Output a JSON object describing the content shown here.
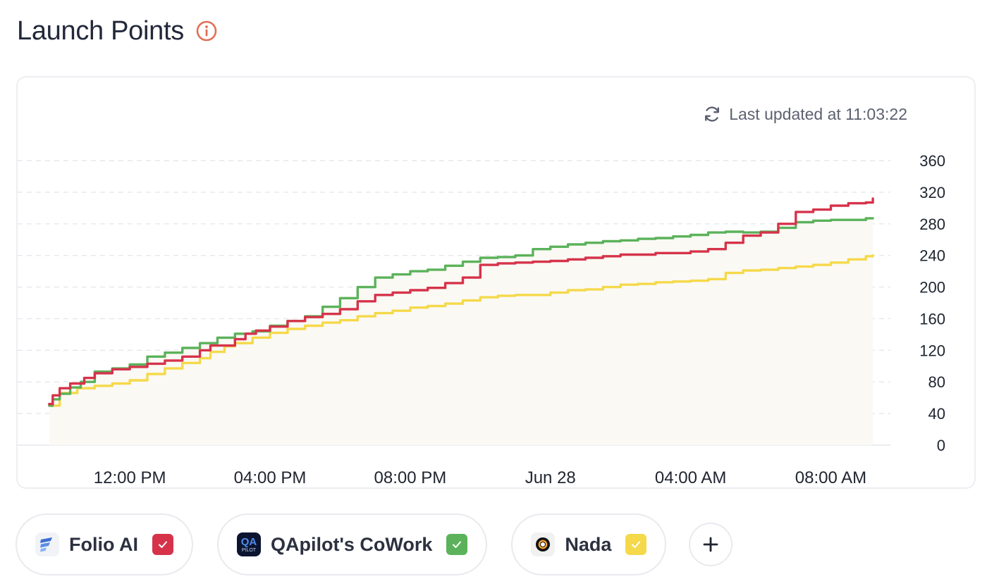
{
  "header": {
    "title": "Launch Points",
    "info_icon": "info-icon",
    "info_color": "#e26f55"
  },
  "status": {
    "text": "Last updated at 11:03:22",
    "icon": "refresh-icon"
  },
  "chart_data": {
    "type": "line",
    "title": "",
    "xlabel": "",
    "ylabel": "",
    "x_unit": "hours since chart start (time axis)",
    "x_ticks": [
      {
        "x": 3,
        "label": "12:00 PM"
      },
      {
        "x": 7,
        "label": "04:00 PM"
      },
      {
        "x": 11,
        "label": "08:00 PM"
      },
      {
        "x": 15,
        "label": "Jun 28"
      },
      {
        "x": 19,
        "label": "04:00 AM"
      },
      {
        "x": 23,
        "label": "08:00 AM"
      }
    ],
    "ylim": [
      0,
      360
    ],
    "y_ticks": [
      0,
      40,
      80,
      120,
      160,
      200,
      240,
      280,
      320,
      360
    ],
    "y_axis_position": "right",
    "grid": "horizontal-dashed",
    "legend": "bottom-chips",
    "series": [
      {
        "name": "Folio AI",
        "color": "#d6334a",
        "points": [
          [
            0.7,
            52
          ],
          [
            0.8,
            63
          ],
          [
            1.0,
            72
          ],
          [
            1.3,
            78
          ],
          [
            1.7,
            85
          ],
          [
            2.0,
            91
          ],
          [
            2.5,
            96
          ],
          [
            3.0,
            99
          ],
          [
            3.5,
            103
          ],
          [
            4.0,
            107
          ],
          [
            4.5,
            112
          ],
          [
            5.0,
            120
          ],
          [
            5.3,
            126
          ],
          [
            6.0,
            134
          ],
          [
            6.3,
            141
          ],
          [
            6.6,
            145
          ],
          [
            7.0,
            150
          ],
          [
            7.5,
            157
          ],
          [
            8.0,
            162
          ],
          [
            8.5,
            166
          ],
          [
            9.0,
            172
          ],
          [
            9.5,
            182
          ],
          [
            10.0,
            190
          ],
          [
            10.5,
            193
          ],
          [
            11.0,
            196
          ],
          [
            11.5,
            199
          ],
          [
            12.0,
            205
          ],
          [
            12.5,
            212
          ],
          [
            13.0,
            228
          ],
          [
            13.5,
            230
          ],
          [
            14.0,
            231
          ],
          [
            14.5,
            232
          ],
          [
            15.0,
            233
          ],
          [
            15.5,
            235
          ],
          [
            16.0,
            237
          ],
          [
            16.5,
            239
          ],
          [
            17.0,
            241
          ],
          [
            18.0,
            243
          ],
          [
            19.0,
            245
          ],
          [
            19.5,
            248
          ],
          [
            20.0,
            256
          ],
          [
            20.5,
            265
          ],
          [
            21.0,
            269
          ],
          [
            21.5,
            280
          ],
          [
            22.0,
            295
          ],
          [
            22.5,
            298
          ],
          [
            23.0,
            303
          ],
          [
            23.5,
            306
          ],
          [
            24.0,
            307
          ],
          [
            24.2,
            312
          ]
        ]
      },
      {
        "name": "QApilot's CoWork",
        "color": "#5bb25a",
        "points": [
          [
            0.7,
            50
          ],
          [
            0.8,
            58
          ],
          [
            1.0,
            65
          ],
          [
            1.3,
            73
          ],
          [
            1.6,
            80
          ],
          [
            2.0,
            93
          ],
          [
            2.5,
            97
          ],
          [
            3.0,
            102
          ],
          [
            3.5,
            112
          ],
          [
            4.0,
            117
          ],
          [
            4.5,
            123
          ],
          [
            5.0,
            129
          ],
          [
            5.5,
            136
          ],
          [
            6.0,
            141
          ],
          [
            6.5,
            144
          ],
          [
            7.0,
            151
          ],
          [
            7.5,
            157
          ],
          [
            8.0,
            163
          ],
          [
            8.5,
            175
          ],
          [
            9.0,
            186
          ],
          [
            9.5,
            200
          ],
          [
            10.0,
            212
          ],
          [
            10.5,
            216
          ],
          [
            11.0,
            220
          ],
          [
            11.5,
            222
          ],
          [
            12.0,
            227
          ],
          [
            12.5,
            232
          ],
          [
            13.0,
            237
          ],
          [
            13.5,
            238
          ],
          [
            14.0,
            240
          ],
          [
            14.5,
            248
          ],
          [
            15.0,
            251
          ],
          [
            15.5,
            254
          ],
          [
            16.0,
            256
          ],
          [
            16.5,
            258
          ],
          [
            17.0,
            259
          ],
          [
            17.5,
            261
          ],
          [
            18.0,
            262
          ],
          [
            18.5,
            264
          ],
          [
            19.0,
            266
          ],
          [
            19.5,
            269
          ],
          [
            20.0,
            270
          ],
          [
            20.5,
            269
          ],
          [
            21.0,
            270
          ],
          [
            21.5,
            275
          ],
          [
            22.0,
            282
          ],
          [
            22.5,
            284
          ],
          [
            23.0,
            285
          ],
          [
            23.5,
            285
          ],
          [
            24.0,
            287
          ],
          [
            24.2,
            287
          ]
        ]
      },
      {
        "name": "Nada",
        "color": "#f5d94a",
        "points": [
          [
            0.7,
            50
          ],
          [
            1.0,
            66
          ],
          [
            1.5,
            72
          ],
          [
            2.0,
            75
          ],
          [
            2.5,
            78
          ],
          [
            3.0,
            82
          ],
          [
            3.5,
            90
          ],
          [
            4.0,
            97
          ],
          [
            4.5,
            104
          ],
          [
            5.0,
            110
          ],
          [
            5.3,
            118
          ],
          [
            5.7,
            125
          ],
          [
            6.0,
            129
          ],
          [
            6.5,
            136
          ],
          [
            7.0,
            142
          ],
          [
            7.5,
            147
          ],
          [
            8.0,
            151
          ],
          [
            8.5,
            155
          ],
          [
            9.0,
            158
          ],
          [
            9.5,
            163
          ],
          [
            10.0,
            167
          ],
          [
            10.5,
            170
          ],
          [
            11.0,
            174
          ],
          [
            11.5,
            176
          ],
          [
            12.0,
            179
          ],
          [
            12.5,
            183
          ],
          [
            13.0,
            187
          ],
          [
            13.5,
            189
          ],
          [
            14.0,
            190
          ],
          [
            14.5,
            190
          ],
          [
            15.0,
            193
          ],
          [
            15.5,
            196
          ],
          [
            16.0,
            197
          ],
          [
            16.5,
            200
          ],
          [
            17.0,
            203
          ],
          [
            17.5,
            204
          ],
          [
            18.0,
            206
          ],
          [
            18.5,
            207
          ],
          [
            19.0,
            208
          ],
          [
            19.5,
            210
          ],
          [
            20.0,
            218
          ],
          [
            20.5,
            221
          ],
          [
            21.0,
            222
          ],
          [
            21.5,
            224
          ],
          [
            22.0,
            226
          ],
          [
            22.5,
            228
          ],
          [
            23.0,
            231
          ],
          [
            23.5,
            235
          ],
          [
            24.0,
            239
          ],
          [
            24.2,
            240
          ]
        ]
      }
    ]
  },
  "competitors": [
    {
      "label": "Folio AI",
      "logo": "folio-ai-logo",
      "check_color": "#d6334a",
      "checked": true
    },
    {
      "label": "QApilot's CoWork",
      "logo": "qapilot-logo",
      "logo_text_top": "QA",
      "logo_text_bottom": "PILOT",
      "check_color": "#5bb25a",
      "checked": true
    },
    {
      "label": "Nada",
      "logo": "nada-logo",
      "check_color": "#f5d94a",
      "checked": true
    }
  ],
  "add_button": {
    "icon": "plus-icon"
  }
}
